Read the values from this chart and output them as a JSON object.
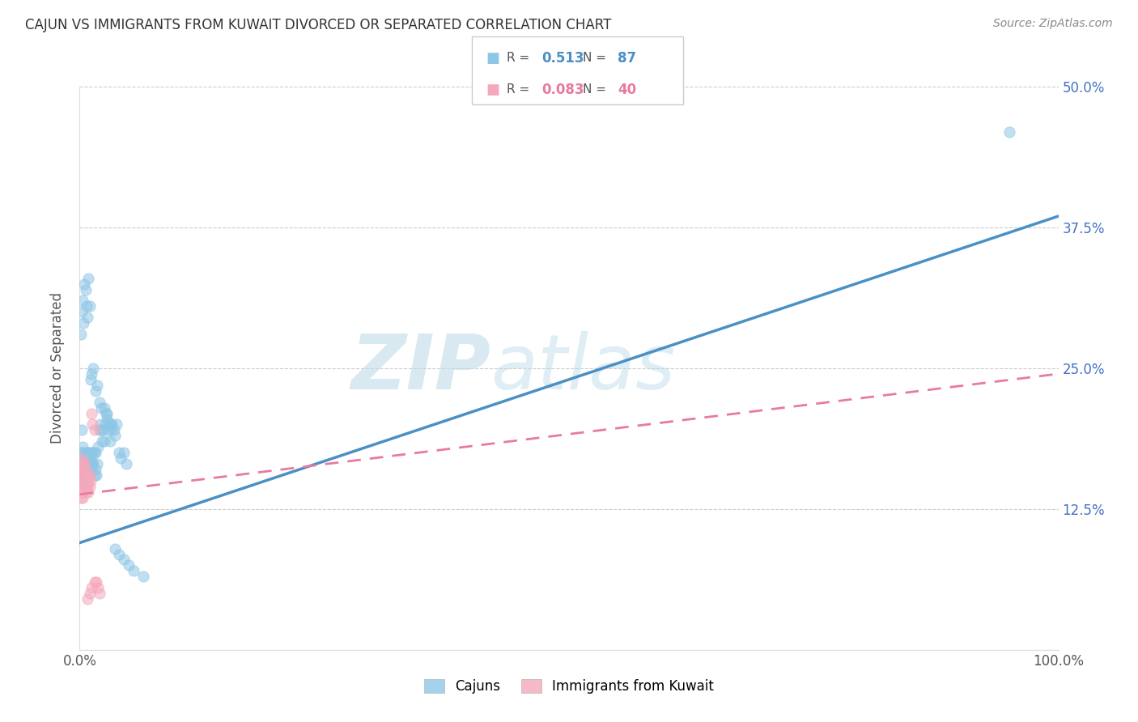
{
  "title": "CAJUN VS IMMIGRANTS FROM KUWAIT DIVORCED OR SEPARATED CORRELATION CHART",
  "source": "Source: ZipAtlas.com",
  "ylabel_label": "Divorced or Separated",
  "legend1_r": "0.513",
  "legend1_n": "87",
  "legend2_r": "0.083",
  "legend2_n": "40",
  "blue_color": "#8ec6e6",
  "pink_color": "#f4a8bb",
  "blue_line_color": "#4a90c4",
  "pink_line_color": "#e87aa0",
  "watermark_zip": "ZIP",
  "watermark_atlas": "atlas",
  "xlim": [
    0.0,
    1.0
  ],
  "ylim": [
    0.0,
    0.5
  ],
  "xticks": [
    0.0,
    0.125,
    0.25,
    0.375,
    0.5,
    0.625,
    0.75,
    0.875,
    1.0
  ],
  "yticks": [
    0.0,
    0.125,
    0.25,
    0.375,
    0.5
  ],
  "xtick_labels": [
    "0.0%",
    "",
    "",
    "",
    "",
    "",
    "",
    "",
    "100.0%"
  ],
  "ytick_labels": [
    "",
    "12.5%",
    "25.0%",
    "37.5%",
    "50.0%"
  ],
  "blue_line_x0": 0.0,
  "blue_line_y0": 0.095,
  "blue_line_x1": 1.0,
  "blue_line_y1": 0.385,
  "pink_line_x0": 0.0,
  "pink_line_y0": 0.138,
  "pink_line_x1": 1.0,
  "pink_line_y1": 0.245,
  "blue_scatter_x": [
    0.001,
    0.002,
    0.002,
    0.003,
    0.003,
    0.003,
    0.004,
    0.004,
    0.004,
    0.005,
    0.005,
    0.005,
    0.006,
    0.006,
    0.006,
    0.007,
    0.007,
    0.007,
    0.008,
    0.008,
    0.009,
    0.009,
    0.01,
    0.01,
    0.01,
    0.011,
    0.011,
    0.012,
    0.012,
    0.013,
    0.013,
    0.014,
    0.015,
    0.015,
    0.016,
    0.016,
    0.017,
    0.018,
    0.019,
    0.02,
    0.021,
    0.022,
    0.023,
    0.024,
    0.025,
    0.026,
    0.027,
    0.028,
    0.029,
    0.03,
    0.031,
    0.032,
    0.033,
    0.035,
    0.036,
    0.038,
    0.04,
    0.042,
    0.045,
    0.048,
    0.001,
    0.002,
    0.003,
    0.004,
    0.005,
    0.006,
    0.007,
    0.008,
    0.009,
    0.01,
    0.011,
    0.012,
    0.014,
    0.016,
    0.018,
    0.02,
    0.022,
    0.025,
    0.028,
    0.032,
    0.036,
    0.04,
    0.045,
    0.05,
    0.055,
    0.065,
    0.95
  ],
  "blue_scatter_y": [
    0.175,
    0.195,
    0.165,
    0.18,
    0.165,
    0.155,
    0.175,
    0.16,
    0.15,
    0.17,
    0.155,
    0.16,
    0.165,
    0.175,
    0.15,
    0.16,
    0.17,
    0.155,
    0.175,
    0.165,
    0.165,
    0.175,
    0.165,
    0.175,
    0.16,
    0.17,
    0.16,
    0.175,
    0.165,
    0.165,
    0.175,
    0.165,
    0.175,
    0.155,
    0.175,
    0.16,
    0.155,
    0.165,
    0.18,
    0.195,
    0.2,
    0.195,
    0.185,
    0.195,
    0.185,
    0.2,
    0.21,
    0.205,
    0.195,
    0.2,
    0.185,
    0.195,
    0.2,
    0.195,
    0.19,
    0.2,
    0.175,
    0.17,
    0.175,
    0.165,
    0.28,
    0.3,
    0.31,
    0.29,
    0.325,
    0.32,
    0.305,
    0.295,
    0.33,
    0.305,
    0.24,
    0.245,
    0.25,
    0.23,
    0.235,
    0.22,
    0.215,
    0.215,
    0.21,
    0.2,
    0.09,
    0.085,
    0.08,
    0.075,
    0.07,
    0.065,
    0.46
  ],
  "pink_scatter_x": [
    0.001,
    0.001,
    0.001,
    0.001,
    0.002,
    0.002,
    0.002,
    0.002,
    0.003,
    0.003,
    0.003,
    0.003,
    0.004,
    0.004,
    0.004,
    0.005,
    0.005,
    0.005,
    0.006,
    0.006,
    0.006,
    0.007,
    0.007,
    0.008,
    0.008,
    0.009,
    0.009,
    0.01,
    0.01,
    0.011,
    0.012,
    0.013,
    0.015,
    0.017,
    0.019,
    0.02,
    0.015,
    0.012,
    0.01,
    0.008
  ],
  "pink_scatter_y": [
    0.165,
    0.155,
    0.145,
    0.135,
    0.17,
    0.16,
    0.15,
    0.14,
    0.165,
    0.155,
    0.145,
    0.135,
    0.165,
    0.155,
    0.145,
    0.165,
    0.155,
    0.145,
    0.16,
    0.15,
    0.14,
    0.155,
    0.145,
    0.155,
    0.145,
    0.15,
    0.14,
    0.155,
    0.145,
    0.15,
    0.21,
    0.2,
    0.195,
    0.06,
    0.055,
    0.05,
    0.06,
    0.055,
    0.05,
    0.045
  ]
}
